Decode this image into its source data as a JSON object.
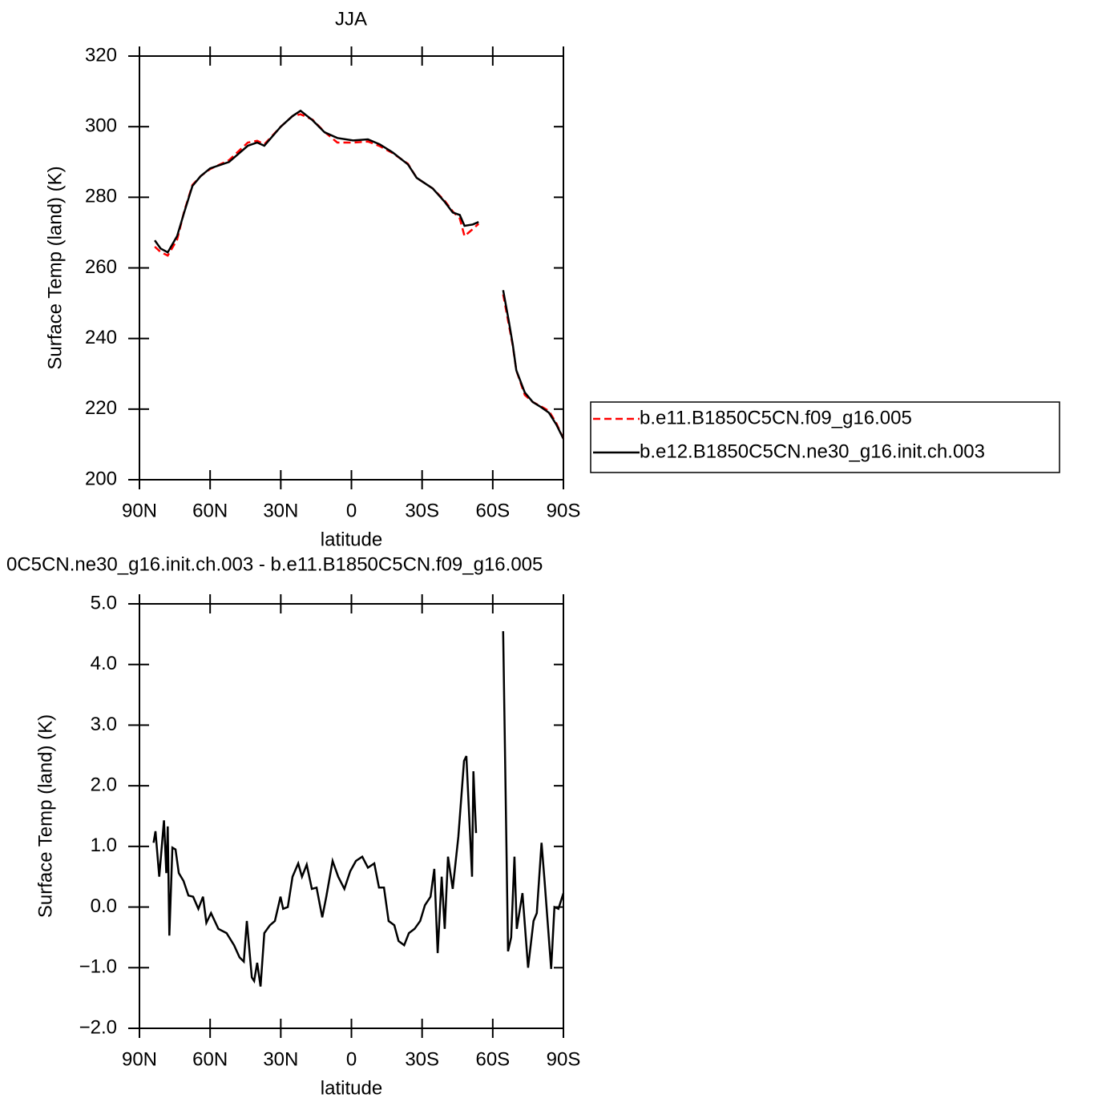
{
  "chart_data": [
    {
      "type": "line",
      "title": "JJA",
      "xlabel": "latitude",
      "ylabel": "Surface Temp (land) (K)",
      "x": [
        83.5,
        81,
        78,
        74,
        71,
        67.5,
        64,
        60,
        52,
        44,
        40,
        37,
        30,
        25,
        21.6,
        16.5,
        11.4,
        6,
        -0.7,
        -7,
        -12,
        -17.5,
        -24,
        -27.7,
        -34.5,
        -39.6,
        -43,
        -46,
        -48,
        -51.5,
        -54,
        -60,
        -64.4,
        -66.8,
        -68.5,
        -70,
        -73.6,
        -77,
        -80.4,
        -83.8,
        -87,
        -90
      ],
      "series": [
        {
          "name": "b.e11.B1850C5CN.f09_g16.005",
          "color": "#ff0000",
          "dash": true,
          "values": [
            266,
            264.5,
            263.5,
            268,
            276,
            283.5,
            286,
            288,
            290.5,
            295.5,
            296,
            295,
            300,
            303,
            303.5,
            302,
            298.5,
            295.5,
            295.5,
            295.8,
            294.5,
            292.5,
            289.5,
            285.5,
            282.5,
            279,
            276,
            274,
            269,
            271,
            272.5,
            null,
            252.5,
            244,
            238,
            231,
            224,
            222,
            220.8,
            219.5,
            216,
            211.6
          ]
        },
        {
          "name": "b.e12.B1850C5CN.ne30_g16.init.ch.003",
          "color": "#000000",
          "dash": false,
          "values": [
            267.8,
            265.5,
            264.4,
            269,
            275.7,
            283.2,
            286,
            288.2,
            290,
            294.6,
            295.5,
            294.6,
            300,
            303,
            304.5,
            301.8,
            298.4,
            296.8,
            296.1,
            296.4,
            295,
            292.7,
            289.3,
            285.5,
            282.5,
            278.7,
            275.7,
            275,
            271.9,
            272.3,
            273,
            null,
            253.7,
            245,
            238.3,
            231,
            224.7,
            222,
            220.6,
            219,
            215.6,
            211.6
          ]
        }
      ],
      "xlim": [
        90,
        -90
      ],
      "xticks": [
        {
          "value": 90,
          "label": "90N"
        },
        {
          "value": 60,
          "label": "60N"
        },
        {
          "value": 30,
          "label": "30N"
        },
        0,
        {
          "value": -30,
          "label": "30S"
        },
        {
          "value": -60,
          "label": "60S"
        },
        {
          "value": -90,
          "label": "90S"
        }
      ],
      "ylim": [
        200,
        320
      ],
      "yticks": [
        200,
        220,
        240,
        260,
        280,
        300,
        320
      ],
      "legend": "outside-right"
    },
    {
      "type": "line",
      "title": "0C5CN.ne30_g16.init.ch.003 - b.e11.B1850C5CN.f09_g16.005",
      "xlabel": "latitude",
      "ylabel": "Surface Temp (land) (K)",
      "x": [
        84,
        83.2,
        81.6,
        79.6,
        78.6,
        78,
        77.3,
        76,
        74.7,
        73.3,
        71.3,
        69.2,
        67.2,
        65,
        63,
        61.6,
        59.6,
        56.5,
        53,
        49.8,
        47.5,
        45.7,
        44.4,
        42.3,
        41.3,
        40,
        38.6,
        37,
        34.6,
        32.5,
        30.1,
        29,
        27,
        25,
        22.6,
        21,
        19,
        16.8,
        14.8,
        12.4,
        10.7,
        8,
        5.6,
        3,
        0.5,
        -1.9,
        -4.6,
        -7,
        -9.7,
        -11.7,
        -13.8,
        -15.8,
        -18.2,
        -20,
        -22.4,
        -24.4,
        -26.8,
        -29.2,
        -31.2,
        -33.6,
        -35.2,
        -36.6,
        -38.3,
        -39.6,
        -41,
        -43,
        -45.4,
        -47.8,
        -48.8,
        -51.2,
        -51.8,
        -52.9,
        -60,
        -64.4,
        -66.5,
        -67.8,
        -69.2,
        -70.2,
        -72.6,
        -75,
        -77.3,
        -78.7,
        -80.7,
        -82,
        -84.8,
        -86.2,
        -87.9,
        -90
      ],
      "series": [
        {
          "color": "#000000",
          "values": [
            1.06,
            1.25,
            0.5,
            1.43,
            0.56,
            1.33,
            -0.47,
            0.98,
            0.95,
            0.56,
            0.43,
            0.19,
            0.17,
            -0.03,
            0.17,
            -0.26,
            -0.1,
            -0.36,
            -0.43,
            -0.63,
            -0.83,
            -0.9,
            -0.23,
            -1.16,
            -1.22,
            -0.92,
            -1.31,
            -0.43,
            -0.3,
            -0.23,
            0.17,
            -0.03,
            0,
            0.5,
            0.72,
            0.5,
            0.7,
            0.3,
            0.32,
            -0.17,
            0.17,
            0.76,
            0.5,
            0.3,
            0.59,
            0.76,
            0.83,
            0.65,
            0.72,
            0.32,
            0.32,
            -0.23,
            -0.3,
            -0.56,
            -0.63,
            -0.43,
            -0.36,
            -0.23,
            0.03,
            0.17,
            0.63,
            -0.76,
            0.5,
            -0.36,
            0.83,
            0.3,
            1.16,
            2.41,
            2.49,
            0.5,
            2.24,
            1.22,
            null,
            4.55,
            -0.73,
            -0.5,
            0.83,
            -0.36,
            0.23,
            -1.0,
            -0.23,
            -0.1,
            1.06,
            0.43,
            -1.02,
            0,
            -0.03,
            0.23
          ]
        }
      ],
      "xlim": [
        90,
        -90
      ],
      "xticks": [
        {
          "value": 90,
          "label": "90N"
        },
        {
          "value": 60,
          "label": "60N"
        },
        {
          "value": 30,
          "label": "30N"
        },
        0,
        {
          "value": -30,
          "label": "30S"
        },
        {
          "value": -60,
          "label": "60S"
        },
        {
          "value": -90,
          "label": "90S"
        }
      ],
      "ylim": [
        -2,
        5
      ],
      "yticks": [
        {
          "value": -2,
          "label": "−2.0"
        },
        {
          "value": -1,
          "label": "−1.0"
        },
        {
          "value": 0,
          "label": "0.0"
        },
        {
          "value": 1,
          "label": "1.0"
        },
        {
          "value": 2,
          "label": "2.0"
        },
        {
          "value": 3,
          "label": "3.0"
        },
        {
          "value": 4,
          "label": "4.0"
        },
        {
          "value": 5,
          "label": "5.0"
        }
      ]
    }
  ]
}
